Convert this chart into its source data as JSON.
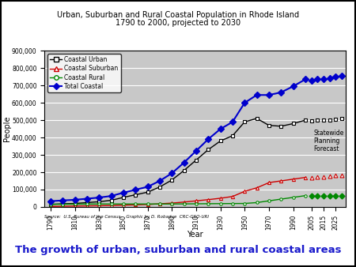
{
  "title_line1": "Urban, Suburban and Rural Coastal Population in Rhode Island",
  "title_line2": "1790 to 2000, projected to 2030",
  "xlabel": "Year",
  "ylabel": "People",
  "source_text": "Source:  U.S. Bureau of the Census.   Graphic by D. Robadue  CRC-GSO-URI",
  "bottom_text": "The growth of urban, suburban and rural coastal areas",
  "ylim": [
    0,
    900000
  ],
  "yticks": [
    0,
    100000,
    200000,
    300000,
    400000,
    500000,
    600000,
    700000,
    800000,
    900000
  ],
  "ytick_labels": [
    "0",
    "100,000",
    "200,000",
    "300,000",
    "400,000",
    "500,000",
    "600,000",
    "700,000",
    "800,000",
    "900,000"
  ],
  "forecast_label": "Statewide\nPlanning\nForecast",
  "years_historical": [
    1790,
    1800,
    1810,
    1820,
    1830,
    1840,
    1850,
    1860,
    1870,
    1880,
    1890,
    1900,
    1910,
    1920,
    1930,
    1940,
    1950,
    1960,
    1970,
    1980,
    1990,
    2000
  ],
  "years_forecast": [
    2005,
    2010,
    2015,
    2020,
    2025,
    2030
  ],
  "coastal_urban_hist": [
    15000,
    18000,
    20000,
    25000,
    30000,
    38000,
    55000,
    70000,
    85000,
    115000,
    155000,
    210000,
    270000,
    330000,
    380000,
    410000,
    490000,
    510000,
    470000,
    465000,
    480000,
    500000
  ],
  "coastal_urban_fore": [
    495000,
    500000,
    500000,
    502000,
    505000,
    510000
  ],
  "coastal_suburban_hist": [
    3000,
    4000,
    5000,
    6000,
    7000,
    8000,
    10000,
    12000,
    14000,
    18000,
    22000,
    28000,
    35000,
    42000,
    50000,
    60000,
    90000,
    110000,
    140000,
    150000,
    160000,
    170000
  ],
  "coastal_suburban_fore": [
    170000,
    172000,
    175000,
    177000,
    180000,
    182000
  ],
  "coastal_rural_hist": [
    15000,
    15500,
    16000,
    16500,
    17000,
    17000,
    17000,
    17000,
    17000,
    17000,
    17000,
    17500,
    18000,
    18500,
    19000,
    19500,
    20000,
    25000,
    35000,
    45000,
    55000,
    65000
  ],
  "coastal_rural_fore": [
    62000,
    63000,
    63000,
    64000,
    64000,
    65000
  ],
  "total_coastal_hist": [
    33000,
    37500,
    41000,
    47500,
    54000,
    63000,
    82000,
    99000,
    116000,
    150000,
    194000,
    255500,
    323000,
    390500,
    449000,
    489500,
    600000,
    645000,
    645000,
    660000,
    695000,
    735000
  ],
  "total_coastal_fore": [
    727000,
    735000,
    738000,
    743000,
    749000,
    757000
  ],
  "color_urban": "#000000",
  "color_suburban": "#cc0000",
  "color_rural": "#008800",
  "color_total": "#0000cc",
  "bg_plot": "#c8c8c8",
  "bg_figure": "#ffffff",
  "bg_bottom": "#ffff99"
}
